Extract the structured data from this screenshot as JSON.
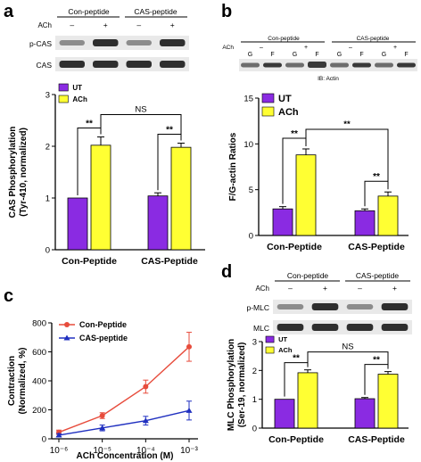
{
  "colors": {
    "ut": "#8a2be2",
    "ach": "#ffff33",
    "con_line": "#e74c3c",
    "cas_line": "#2030c0",
    "band": "#1a1a1a",
    "blot_bg": "#e9e9e9"
  },
  "panels": {
    "a": {
      "label": "a",
      "blot": {
        "groups": [
          "Con-peptide",
          "CAS-peptide"
        ],
        "treat_label": "ACh",
        "lanes": [
          "–",
          "+",
          "–",
          "+"
        ],
        "rows": [
          "p-CAS",
          "CAS"
        ]
      },
      "chart_data": {
        "type": "bar",
        "categories": [
          "Con-Peptide",
          "CAS-Peptide"
        ],
        "series": [
          {
            "name": "UT",
            "values": [
              1.0,
              1.04
            ],
            "errors": [
              0,
              0.06
            ]
          },
          {
            "name": "ACh",
            "values": [
              2.02,
              1.98
            ],
            "errors": [
              0.16,
              0.08
            ]
          }
        ],
        "ylabel": "CAS Phosphorylation\n(Tyr-410, normalized)",
        "ylim": [
          0,
          3
        ],
        "yticks": [
          0,
          1,
          2,
          3
        ],
        "legend": "top-left",
        "annotations": [
          {
            "text": "**",
            "between": "Con-Peptide UT / ACh"
          },
          {
            "text": "**",
            "between": "CAS-Peptide UT / ACh"
          },
          {
            "text": "NS",
            "between": "Con-Peptide ACh / CAS-Peptide ACh"
          }
        ]
      }
    },
    "b": {
      "label": "b",
      "blot": {
        "groups": [
          "Con-peptide",
          "CAS-peptide"
        ],
        "treat_label": "ACh",
        "lanes": [
          "G",
          "F",
          "G",
          "F",
          "G",
          "F",
          "G",
          "F"
        ],
        "treat_marks": [
          "–",
          "+",
          "–",
          "+"
        ],
        "caption": "IB: Actin"
      },
      "chart_data": {
        "type": "bar",
        "categories": [
          "Con-Peptide",
          "CAS-Peptide"
        ],
        "series": [
          {
            "name": "UT",
            "values": [
              2.9,
              2.7
            ],
            "errors": [
              0.25,
              0.2
            ]
          },
          {
            "name": "ACh",
            "values": [
              8.8,
              4.3
            ],
            "errors": [
              0.65,
              0.45
            ]
          }
        ],
        "ylabel": "F/G-actin Ratios",
        "ylim": [
          0,
          15
        ],
        "yticks": [
          0,
          5,
          10,
          15
        ],
        "legend": "top-left",
        "annotations": [
          {
            "text": "**",
            "between": "Con-Peptide UT / ACh"
          },
          {
            "text": "**",
            "between": "CAS-Peptide UT / ACh"
          },
          {
            "text": "**",
            "between": "Con-Peptide ACh / CAS-Peptide ACh"
          }
        ]
      }
    },
    "c": {
      "label": "c",
      "chart_data": {
        "type": "line",
        "x": [
          1e-06,
          1e-05,
          0.0001,
          0.001
        ],
        "xticks": [
          "10⁻⁶",
          "10⁻⁵",
          "10⁻⁴",
          "10⁻³"
        ],
        "xlog": true,
        "series": [
          {
            "name": "Con-Peptide",
            "values": [
              45,
              160,
              360,
              635
            ],
            "errors": [
              15,
              20,
              45,
              100
            ]
          },
          {
            "name": "CAS-peptide",
            "values": [
              25,
              75,
              125,
              195
            ],
            "errors": [
              10,
              20,
              30,
              65
            ]
          }
        ],
        "xlabel": "ACh Concentration (M)",
        "ylabel": "Contraction\n(Normalized, %)",
        "ylim": [
          0,
          800
        ],
        "yticks": [
          0,
          200,
          400,
          600,
          800
        ],
        "legend": "top-left"
      }
    },
    "d": {
      "label": "d",
      "blot": {
        "groups": [
          "Con-peptide",
          "CAS-peptide"
        ],
        "treat_label": "ACh",
        "lanes": [
          "–",
          "+",
          "–",
          "+"
        ],
        "rows": [
          "p-MLC",
          "MLC"
        ]
      },
      "chart_data": {
        "type": "bar",
        "categories": [
          "Con-Peptide",
          "CAS-Peptide"
        ],
        "series": [
          {
            "name": "UT",
            "values": [
              1.0,
              1.02
            ],
            "errors": [
              0,
              0.04
            ]
          },
          {
            "name": "ACh",
            "values": [
              1.92,
              1.87
            ],
            "errors": [
              0.1,
              0.09
            ]
          }
        ],
        "ylabel": "MLC Phosphorylation\n(Ser-19, normalized)",
        "ylim": [
          0,
          3
        ],
        "yticks": [
          0,
          1,
          2,
          3
        ],
        "legend": "top-left",
        "annotations": [
          {
            "text": "**",
            "between": "Con-Peptide UT / ACh"
          },
          {
            "text": "**",
            "between": "CAS-Peptide UT / ACh"
          },
          {
            "text": "NS",
            "between": "Con-Peptide ACh / CAS-Peptide ACh"
          }
        ]
      }
    }
  }
}
